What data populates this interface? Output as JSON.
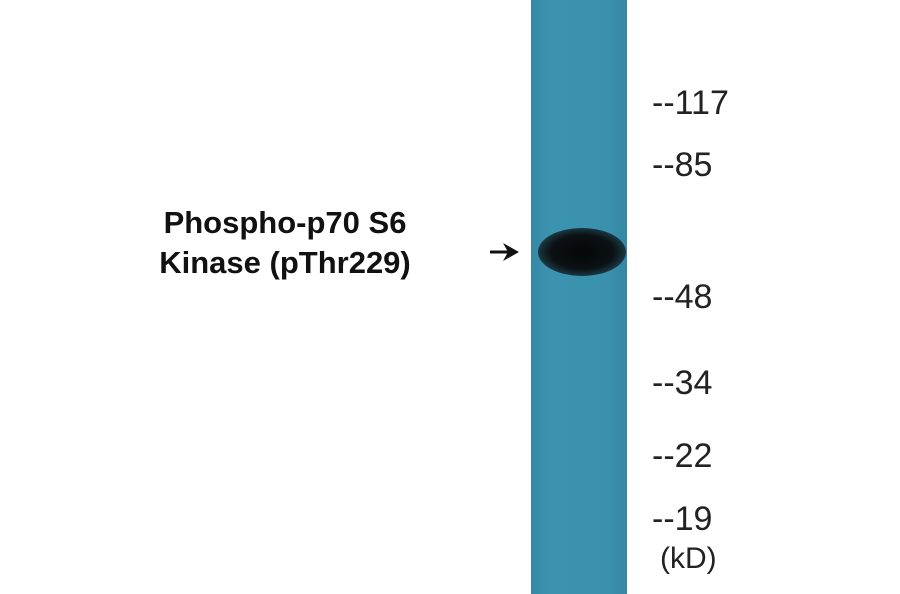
{
  "protein_label": {
    "line1": "Phospho-p70 S6",
    "line2": "Kinase (pThr229)"
  },
  "markers": [
    "--117",
    "--85",
    "--48",
    "--34",
    "--22",
    "--19"
  ],
  "unit": "(kD)",
  "colors": {
    "membrane": "#3a91ae",
    "band": "#0b1114"
  }
}
